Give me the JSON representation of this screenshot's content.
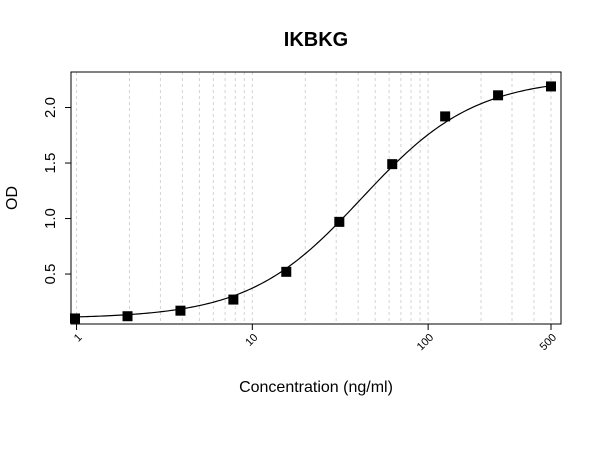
{
  "chart_data": {
    "type": "scatter",
    "title": "IKBKG",
    "xlabel": "Concentration (ng/ml)",
    "ylabel": "OD",
    "x_scale": "log",
    "xlim": [
      0.93,
      570
    ],
    "ylim": [
      0.05,
      2.32
    ],
    "grid": true,
    "x_ticks": [
      1,
      10,
      100,
      500
    ],
    "x_tick_labels": [
      "1",
      "10",
      "100",
      "500"
    ],
    "y_ticks": [
      0.5,
      1.0,
      1.5,
      2.0
    ],
    "y_tick_labels": [
      "0.5",
      "1.0",
      "1.5",
      "2.0"
    ],
    "series": [
      {
        "marker": "square",
        "x": [
          0.98,
          1.95,
          3.9,
          7.8,
          15.6,
          31.25,
          62.5,
          125,
          250,
          500
        ],
        "y": [
          0.1,
          0.12,
          0.17,
          0.27,
          0.52,
          0.97,
          1.49,
          1.92,
          2.11,
          2.19
        ]
      }
    ],
    "fit_curve": {
      "type": "4PL",
      "bottom": 0.1,
      "top": 2.27,
      "ec50": 42,
      "hill": 1.35
    }
  }
}
